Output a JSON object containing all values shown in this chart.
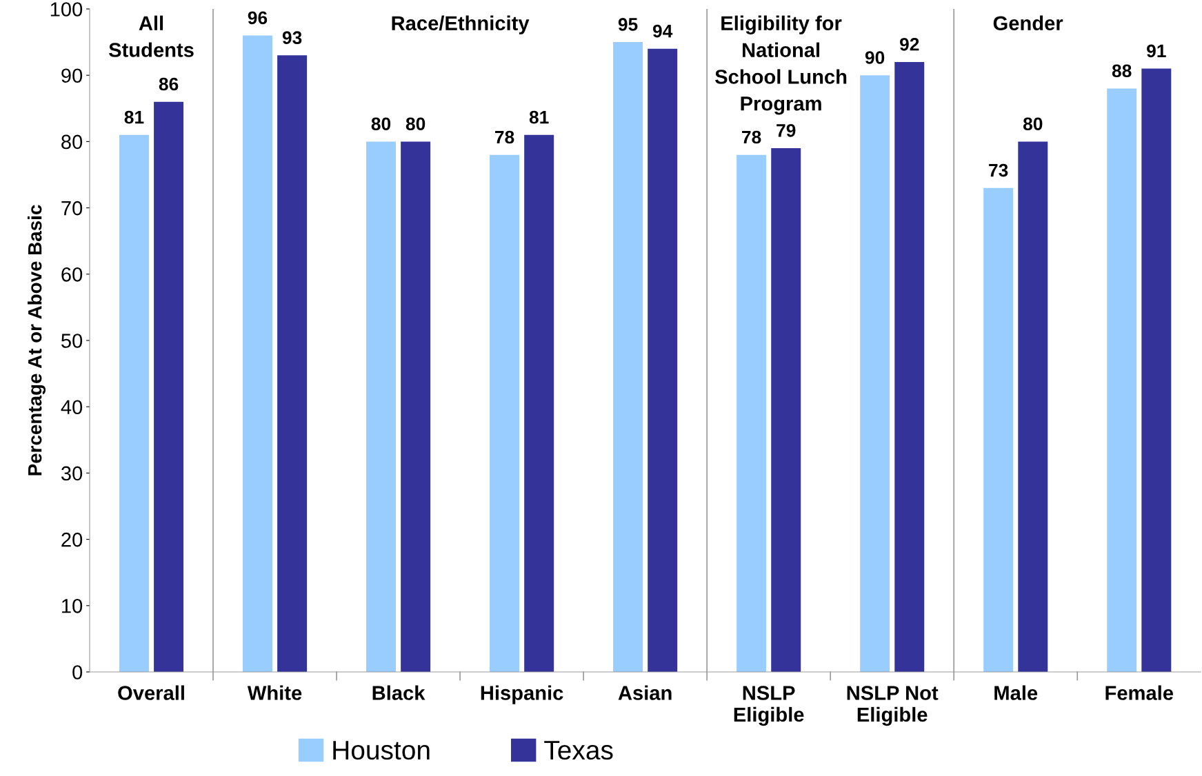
{
  "chart_data": {
    "type": "bar",
    "ylabel": "Percentage At or Above Basic",
    "categories": [
      "Overall",
      "White",
      "Black",
      "Hispanic",
      "Asian",
      "NSLP\nEligible",
      "NSLP Not\nEligible",
      "Male",
      "Female"
    ],
    "series": [
      {
        "name": "Houston",
        "color": "#99ccff",
        "values": [
          81,
          96,
          80,
          78,
          95,
          78,
          90,
          73,
          88
        ]
      },
      {
        "name": "Texas",
        "color": "#333399",
        "values": [
          86,
          93,
          80,
          81,
          94,
          79,
          92,
          80,
          91
        ]
      }
    ],
    "ylim": [
      0,
      100
    ],
    "yticks": [
      0,
      10,
      20,
      30,
      40,
      50,
      60,
      70,
      80,
      90,
      100
    ],
    "annotations": [
      "All\nStudents",
      "Race/Ethnicity",
      "Eligibility for\nNational\nSchool Lunch\nProgram",
      "Gender"
    ],
    "data_labels": true,
    "grid": false,
    "legend": "bottom"
  }
}
